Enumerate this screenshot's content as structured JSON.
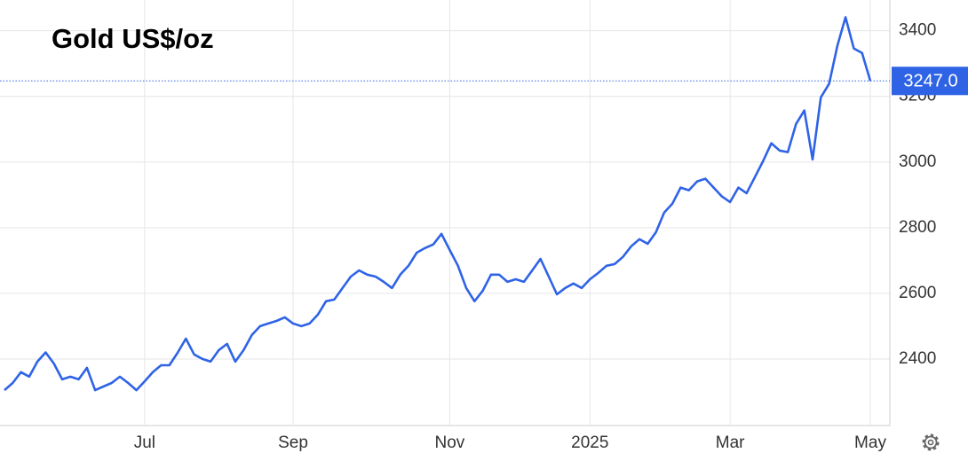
{
  "chart_data": {
    "type": "line",
    "title": "Gold US$/oz",
    "categories": [
      null,
      null,
      null,
      null,
      null,
      null,
      null,
      null,
      null,
      null,
      null,
      null,
      null,
      null,
      null,
      null,
      null,
      "Jul",
      null,
      null,
      null,
      null,
      null,
      null,
      null,
      null,
      null,
      null,
      null,
      null,
      null,
      null,
      null,
      null,
      null,
      "Sep",
      null,
      null,
      null,
      null,
      null,
      null,
      null,
      null,
      null,
      null,
      null,
      null,
      null,
      null,
      null,
      null,
      null,
      null,
      "Nov",
      null,
      null,
      null,
      null,
      null,
      null,
      null,
      null,
      null,
      null,
      null,
      null,
      null,
      null,
      null,
      null,
      "2025",
      null,
      null,
      null,
      null,
      null,
      null,
      null,
      null,
      null,
      null,
      null,
      null,
      null,
      null,
      null,
      null,
      "Mar",
      null,
      null,
      null,
      null,
      null,
      null,
      null,
      null,
      null,
      null,
      null,
      null,
      null,
      null,
      null,
      null,
      "May"
    ],
    "values": [
      2305,
      2327,
      2360,
      2346,
      2392,
      2420,
      2386,
      2338,
      2346,
      2338,
      2373,
      2305,
      2316,
      2327,
      2346,
      2327,
      2305,
      2332,
      2360,
      2381,
      2381,
      2419,
      2462,
      2414,
      2400,
      2392,
      2427,
      2446,
      2392,
      2427,
      2473,
      2500,
      2508,
      2516,
      2527,
      2508,
      2500,
      2508,
      2535,
      2576,
      2581,
      2616,
      2651,
      2670,
      2657,
      2651,
      2635,
      2616,
      2657,
      2684,
      2724,
      2738,
      2749,
      2781,
      2732,
      2684,
      2616,
      2576,
      2608,
      2657,
      2657,
      2635,
      2643,
      2635,
      2670,
      2705,
      2651,
      2597,
      2616,
      2630,
      2616,
      2643,
      2662,
      2684,
      2689,
      2711,
      2743,
      2765,
      2751,
      2786,
      2846,
      2873,
      2922,
      2914,
      2941,
      2949,
      2922,
      2895,
      2878,
      2922,
      2905,
      2954,
      3003,
      3057,
      3035,
      3030,
      3116,
      3157,
      3008,
      3197,
      3238,
      3354,
      3441,
      3346,
      3332,
      3247
    ],
    "color": "#2f63e6",
    "ylim": [
      2200,
      3480
    ],
    "yticks": [
      2400,
      2600,
      2800,
      3000,
      3200,
      3400
    ],
    "grid": true,
    "current_value": {
      "value": 3247,
      "label": "3247.0"
    },
    "badge_color": "#2f63e6"
  }
}
